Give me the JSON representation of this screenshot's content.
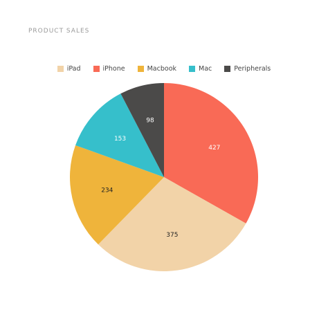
{
  "chart_data": {
    "type": "pie",
    "title": "PRODUCT SALES",
    "categories": [
      "iPhone",
      "iPad",
      "Macbook",
      "Mac",
      "Peripherals"
    ],
    "values": [
      427,
      375,
      234,
      153,
      98
    ],
    "colors": [
      "#F96A56",
      "#F2D3A8",
      "#EFB43B",
      "#36BFCB",
      "#4B4A49"
    ],
    "label_colors": [
      "#ffffff",
      "#222222",
      "#222222",
      "#ffffff",
      "#ffffff"
    ],
    "legend": {
      "placement": "top-center",
      "order": [
        "iPad",
        "iPhone",
        "Macbook",
        "Mac",
        "Peripherals"
      ]
    },
    "start_angle_deg": 0,
    "direction": "clockwise"
  }
}
